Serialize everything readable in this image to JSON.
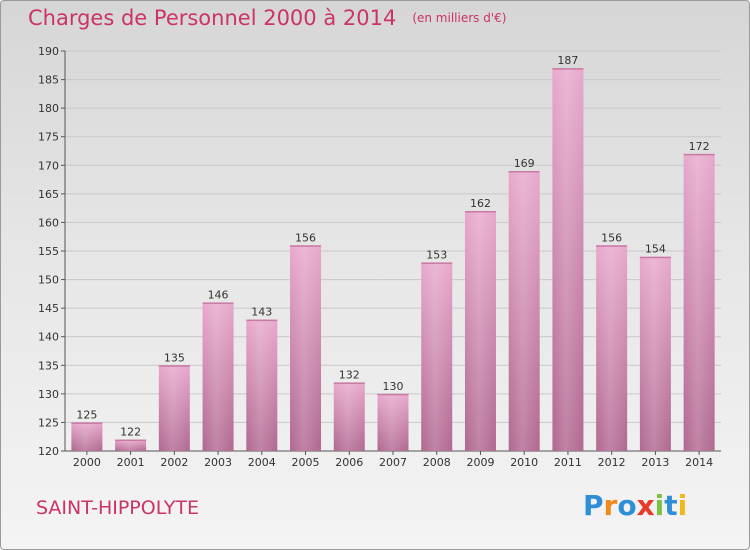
{
  "header": {
    "title": "Charges de Personnel 2000 à 2014",
    "subtitle": "(en milliers d'€)"
  },
  "footer": {
    "place": "SAINT-HIPPOLYTE",
    "logo_letters": [
      {
        "char": "P",
        "color": "#2f8fd6"
      },
      {
        "char": "r",
        "color": "#f08a1c"
      },
      {
        "char": "o",
        "color": "#2f8fd6"
      },
      {
        "char": "x",
        "color": "#e83a2a"
      },
      {
        "char": "i",
        "color": "#7cc242"
      },
      {
        "char": "t",
        "color": "#2f8fd6"
      },
      {
        "char": "i",
        "color": "#f0b81c"
      }
    ]
  },
  "chart_data": {
    "type": "bar",
    "title": "Charges de Personnel 2000 à 2014",
    "subtitle": "(en milliers d'€)",
    "categories": [
      "2000",
      "2001",
      "2002",
      "2003",
      "2004",
      "2005",
      "2006",
      "2007",
      "2008",
      "2009",
      "2010",
      "2011",
      "2012",
      "2013",
      "2014"
    ],
    "values": [
      125,
      122,
      135,
      146,
      143,
      156,
      132,
      130,
      153,
      162,
      169,
      187,
      156,
      154,
      172
    ],
    "ylim": [
      120,
      190
    ],
    "yticks": [
      120,
      125,
      130,
      135,
      140,
      145,
      150,
      155,
      160,
      165,
      170,
      175,
      180,
      185,
      190
    ],
    "grid": true,
    "legend": "none",
    "bar_color_top": "#e8a8cc",
    "bar_color_bottom": "#b06890",
    "grid_color": "#c8c8c8"
  }
}
